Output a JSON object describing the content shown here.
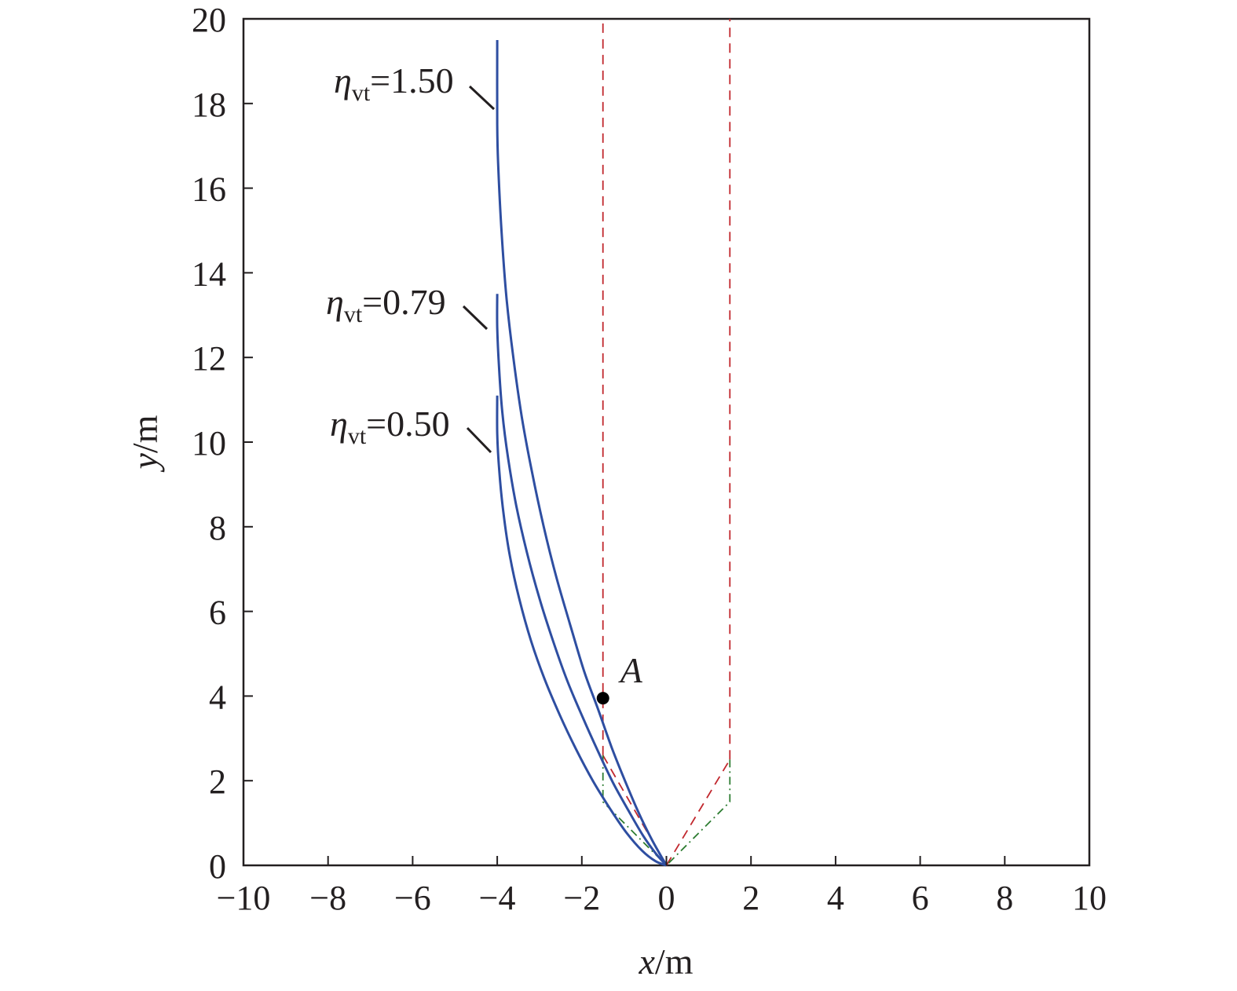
{
  "chart_data": {
    "type": "line",
    "title": "",
    "xlabel": {
      "var": "x",
      "unit": "/m"
    },
    "ylabel": {
      "var": "y",
      "unit": "/m"
    },
    "xlim": [
      -10,
      10
    ],
    "ylim": [
      0,
      20
    ],
    "xticks": [
      -10,
      -8,
      -6,
      -4,
      -2,
      0,
      2,
      4,
      6,
      8,
      10
    ],
    "yticks": [
      0,
      2,
      4,
      6,
      8,
      10,
      12,
      14,
      16,
      18,
      20
    ],
    "xtick_labels": [
      "−10",
      "−8",
      "−6",
      "−4",
      "−2",
      "0",
      "2",
      "4",
      "6",
      "8",
      "10"
    ],
    "ytick_labels": [
      "0",
      "2",
      "4",
      "6",
      "8",
      "10",
      "12",
      "14",
      "16",
      "18",
      "20"
    ],
    "grid": false,
    "colors": {
      "trajectory": "#2e4ea1",
      "boundary_red": "#c1272d",
      "boundary_green": "#2e7d32",
      "axis": "#231f20"
    },
    "series": [
      {
        "label": {
          "sym": "η",
          "sub": "vt",
          "value": "=1.50"
        },
        "x": [
          -4.0,
          -4.0,
          -3.98,
          -3.9,
          -3.78,
          -3.62,
          -3.42,
          -3.18,
          -2.9,
          -2.6,
          -2.28,
          -1.95,
          -1.62,
          -1.3,
          -0.98,
          -0.66,
          -0.34,
          0.0
        ],
        "y": [
          19.5,
          17.5,
          16.6,
          15.0,
          13.4,
          12.0,
          10.6,
          9.3,
          8.0,
          6.8,
          5.7,
          4.6,
          3.7,
          2.8,
          2.0,
          1.25,
          0.6,
          0.0
        ]
      },
      {
        "label": {
          "sym": "η",
          "sub": "vt",
          "value": "=0.79"
        },
        "x": [
          -4.0,
          -4.0,
          -3.96,
          -3.88,
          -3.74,
          -3.55,
          -3.3,
          -3.0,
          -2.68,
          -2.34,
          -1.98,
          -1.62,
          -1.26,
          -0.9,
          -0.55,
          -0.25,
          0.0
        ],
        "y": [
          13.5,
          12.7,
          11.8,
          10.7,
          9.6,
          8.5,
          7.4,
          6.3,
          5.3,
          4.35,
          3.5,
          2.7,
          1.95,
          1.3,
          0.7,
          0.28,
          0.0
        ]
      },
      {
        "label": {
          "sym": "η",
          "sub": "vt",
          "value": "=0.50"
        },
        "x": [
          -4.0,
          -4.0,
          -3.95,
          -3.85,
          -3.7,
          -3.48,
          -3.2,
          -2.88,
          -2.52,
          -2.14,
          -1.74,
          -1.34,
          -0.95,
          -0.58,
          -0.26,
          0.0
        ],
        "y": [
          11.1,
          10.2,
          9.3,
          8.3,
          7.3,
          6.3,
          5.3,
          4.4,
          3.55,
          2.75,
          2.0,
          1.35,
          0.78,
          0.35,
          0.1,
          0.0
        ]
      }
    ],
    "boundaries": [
      {
        "name": "left-red-vertical",
        "style": "dashed",
        "color": "red",
        "x": [
          -1.5,
          -1.5
        ],
        "y": [
          2.6,
          20
        ]
      },
      {
        "name": "right-red-vertical",
        "style": "dashed",
        "color": "red",
        "x": [
          1.5,
          1.5
        ],
        "y": [
          2.5,
          20
        ]
      },
      {
        "name": "left-red-diagonal",
        "style": "dashed",
        "color": "red",
        "x": [
          -1.5,
          0
        ],
        "y": [
          2.6,
          0
        ]
      },
      {
        "name": "right-red-diagonal",
        "style": "dashed",
        "color": "red",
        "x": [
          0,
          1.5
        ],
        "y": [
          0,
          2.5
        ]
      },
      {
        "name": "left-green-boundary",
        "style": "dashdot",
        "color": "green",
        "x": [
          -1.5,
          -1.5,
          0
        ],
        "y": [
          2.6,
          1.5,
          0
        ]
      },
      {
        "name": "right-green-boundary",
        "style": "dashdot",
        "color": "green",
        "x": [
          1.5,
          1.5,
          0
        ],
        "y": [
          2.5,
          1.5,
          0
        ]
      }
    ],
    "annotations": [
      {
        "name": "point-a",
        "text": "A",
        "x": -1.5,
        "y": 3.95
      }
    ]
  }
}
